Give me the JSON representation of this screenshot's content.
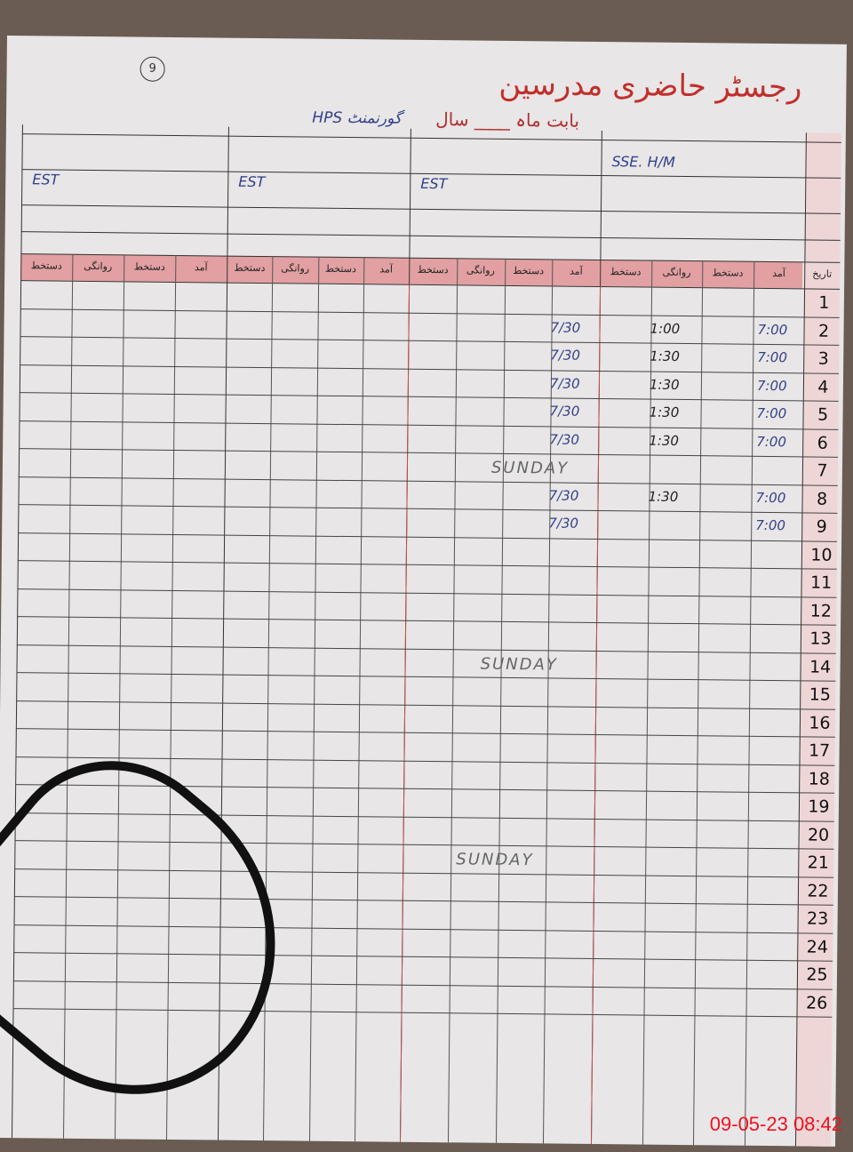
{
  "header": {
    "title": "رجسٹر حاضری مدرسین",
    "subtitle": "بابت ماہ ____ سال",
    "school_hint": "گورنمنٹ HPS",
    "page_number": "9",
    "date_label": "تاریخ"
  },
  "teachers": [
    {
      "name": "",
      "designation": "SSE. H/M"
    },
    {
      "name": "",
      "designation": "EST"
    },
    {
      "name": "",
      "designation": "EST"
    },
    {
      "name": "",
      "designation": "EST"
    }
  ],
  "subcolumns": [
    "آمد",
    "دستخط",
    "روانگی",
    "دستخط"
  ],
  "rows": [
    {
      "day": "1",
      "arr": "",
      "dep": ""
    },
    {
      "day": "2",
      "arr": "7:00",
      "dep": "1:00",
      "arr2": "7/30"
    },
    {
      "day": "3",
      "arr": "7:00",
      "dep": "1:30",
      "arr2": "7/30"
    },
    {
      "day": "4",
      "arr": "7:00",
      "dep": "1:30",
      "arr2": "7/30"
    },
    {
      "day": "5",
      "arr": "7:00",
      "dep": "1:30",
      "arr2": "7/30"
    },
    {
      "day": "6",
      "arr": "7:00",
      "dep": "1:30",
      "arr2": "7/30"
    },
    {
      "day": "7",
      "arr": "",
      "dep": "",
      "note": "SUNDAY"
    },
    {
      "day": "8",
      "arr": "7:00",
      "dep": "1:30",
      "arr2": "7/30"
    },
    {
      "day": "9",
      "arr": "7:00",
      "dep": "",
      "arr2": "7/30"
    },
    {
      "day": "10"
    },
    {
      "day": "11"
    },
    {
      "day": "12"
    },
    {
      "day": "13"
    },
    {
      "day": "14",
      "note": "SUNDAY"
    },
    {
      "day": "15"
    },
    {
      "day": "16"
    },
    {
      "day": "17"
    },
    {
      "day": "18"
    },
    {
      "day": "19"
    },
    {
      "day": "20"
    },
    {
      "day": "21",
      "note": "SUNDAY"
    },
    {
      "day": "22"
    },
    {
      "day": "23"
    },
    {
      "day": "24"
    },
    {
      "day": "25"
    },
    {
      "day": "26"
    }
  ],
  "timestamp": "09-05-23  08:42"
}
